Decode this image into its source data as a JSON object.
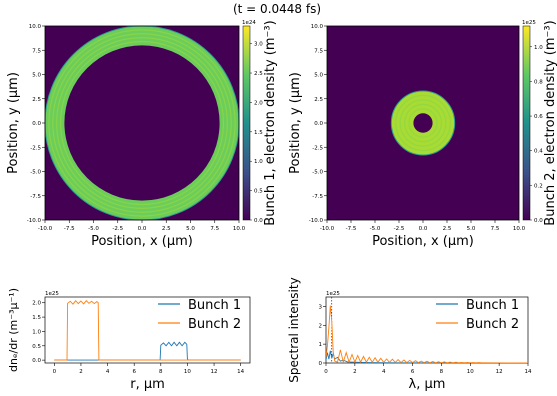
{
  "figure": {
    "title": "(t = 0.0448 fs)"
  },
  "chart_data": [
    {
      "type": "heatmap",
      "id": "panel1",
      "xlabel": "Position, x (μm)",
      "ylabel": "Position, y (μm)",
      "xlim": [
        -10,
        10
      ],
      "ylim": [
        -10,
        10
      ],
      "xticks": [
        "-10.0",
        "-7.5",
        "-5.0",
        "-2.5",
        "0.0",
        "2.5",
        "5.0",
        "7.5",
        "10.0"
      ],
      "yticks": [
        "-10.0",
        "-7.5",
        "-5.0",
        "-2.5",
        "0.0",
        "2.5",
        "5.0",
        "7.5",
        "10.0"
      ],
      "colorbar": {
        "label": "Bunch 1, electron density (m⁻³)",
        "range": [
          0,
          3.3e+24
        ],
        "offset_text": "1e24",
        "ticks": [
          "0.0",
          "0.5",
          "1.0",
          "1.5",
          "2.0",
          "2.5",
          "3.0"
        ]
      },
      "shape": {
        "kind": "annulus",
        "inner_radius": 8.0,
        "outer_radius": 10.0,
        "center": [
          0,
          0
        ],
        "value": 1.95e+24
      },
      "colors": {
        "background": "#440154",
        "fill": "#6ccd5a"
      }
    },
    {
      "type": "heatmap",
      "id": "panel2",
      "xlabel": "Position, x (μm)",
      "ylabel": "Position, y (μm)",
      "xlim": [
        -10,
        10
      ],
      "ylim": [
        -10,
        10
      ],
      "xticks": [
        "-10.0",
        "-7.5",
        "-5.0",
        "-2.5",
        "0.0",
        "2.5",
        "5.0",
        "7.5",
        "10.0"
      ],
      "yticks": [
        "-10.0",
        "-7.5",
        "-5.0",
        "-2.5",
        "0.0",
        "2.5",
        "5.0",
        "7.5",
        "10.0"
      ],
      "colorbar": {
        "label": "Bunch 2, electron density (m⁻³)",
        "range": [
          0,
          1.12e+25
        ],
        "offset_text": "1e25",
        "ticks": [
          "0.0",
          "0.2",
          "0.4",
          "0.6",
          "0.8",
          "1.0"
        ]
      },
      "shape": {
        "kind": "annulus",
        "inner_radius": 1.0,
        "outer_radius": 3.3,
        "center": [
          0,
          0
        ],
        "value": 9e+24
      },
      "colors": {
        "background": "#440154",
        "fill": "#a8db34"
      }
    },
    {
      "type": "line",
      "id": "panel3",
      "xlabel": "r,  μm",
      "ylabel": "dnₑ/dr (m⁻³μ⁻¹)",
      "offset_text": "1e25",
      "xlim": [
        -0.7,
        14.7
      ],
      "ylim": [
        -0.1,
        2.2
      ],
      "xticks": [
        0,
        2,
        4,
        6,
        8,
        10,
        12,
        14
      ],
      "yticks": [
        "0.0",
        "0.5",
        "1.0",
        "1.5",
        "2.0"
      ],
      "legend_position": "upper right",
      "series": [
        {
          "name": "Bunch 1",
          "color": "#1f77b4",
          "x": [
            0,
            7.95,
            8.0,
            8.2,
            8.4,
            8.6,
            8.8,
            9.0,
            9.2,
            9.4,
            9.6,
            9.8,
            9.95,
            10.0,
            10.05,
            14
          ],
          "y": [
            0,
            0,
            0.52,
            0.6,
            0.5,
            0.62,
            0.5,
            0.62,
            0.5,
            0.62,
            0.5,
            0.62,
            0.55,
            0.05,
            0,
            0
          ]
        },
        {
          "name": "Bunch 2",
          "color": "#ff7f0e",
          "x": [
            0,
            0.95,
            1.0,
            1.2,
            1.4,
            1.6,
            1.8,
            2.0,
            2.2,
            2.4,
            2.6,
            2.8,
            3.0,
            3.2,
            3.3,
            3.35,
            14
          ],
          "y": [
            0,
            0,
            1.98,
            2.05,
            1.95,
            2.07,
            1.97,
            2.06,
            1.96,
            2.07,
            1.98,
            2.05,
            1.97,
            2.04,
            2.0,
            0,
            0
          ]
        }
      ]
    },
    {
      "type": "line",
      "id": "panel4",
      "xlabel": "λ, μm",
      "ylabel": "Spectral intensity",
      "offset_text": "1e25",
      "xlim": [
        0,
        14
      ],
      "ylim": [
        0,
        3.5
      ],
      "xticks": [
        0,
        2,
        4,
        6,
        8,
        10,
        12,
        14
      ],
      "yticks": [
        "0",
        "1",
        "2",
        "3"
      ],
      "vline_x": 0.4,
      "legend_position": "upper right",
      "series": [
        {
          "name": "Bunch 1",
          "color": "#1f77b4",
          "x": [
            0,
            0.1,
            0.2,
            0.3,
            0.4,
            0.5,
            0.6,
            0.8,
            1.0,
            1.2,
            1.5,
            2,
            3,
            5,
            14
          ],
          "y": [
            0.15,
            0.55,
            0.2,
            0.65,
            0.25,
            0.5,
            0.2,
            0.3,
            0.1,
            0.15,
            0.06,
            0.04,
            0.02,
            0.01,
            0
          ]
        },
        {
          "name": "Bunch 2",
          "color": "#ff7f0e",
          "x": [
            0,
            0.1,
            0.2,
            0.3,
            0.4,
            0.5,
            0.6,
            0.8,
            1.0,
            1.2,
            1.4,
            1.6,
            1.8,
            2.0,
            2.2,
            2.4,
            2.6,
            2.8,
            3.0,
            3.2,
            3.4,
            3.6,
            3.8,
            4.0,
            4.2,
            4.4,
            4.6,
            4.8,
            5.0,
            5.2,
            5.4,
            5.6,
            5.8,
            6.0,
            6.2,
            6.4,
            6.6,
            6.8,
            7.0,
            7.2,
            7.4,
            7.6,
            7.8,
            8.0,
            8.2,
            8.4,
            8.6,
            8.8,
            9.0,
            9.2,
            9.4,
            9.6,
            9.8,
            10.0,
            10.2,
            10.4,
            10.6,
            10.8,
            11.0,
            14
          ],
          "y": [
            0.3,
            0.9,
            1.9,
            3.05,
            2.2,
            0.6,
            0.1,
            0.05,
            0.7,
            0.05,
            0.55,
            0.05,
            0.45,
            0.05,
            0.4,
            0.05,
            0.35,
            0.05,
            0.3,
            0.04,
            0.28,
            0.04,
            0.25,
            0.03,
            0.22,
            0.03,
            0.2,
            0.03,
            0.18,
            0.02,
            0.16,
            0.02,
            0.14,
            0.02,
            0.12,
            0.02,
            0.1,
            0.02,
            0.09,
            0.01,
            0.08,
            0.01,
            0.07,
            0.01,
            0.06,
            0.01,
            0.05,
            0.01,
            0.04,
            0.01,
            0.03,
            0.01,
            0.03,
            0.01,
            0.02,
            0.01,
            0.02,
            0.01,
            0.01,
            0
          ]
        }
      ]
    }
  ]
}
